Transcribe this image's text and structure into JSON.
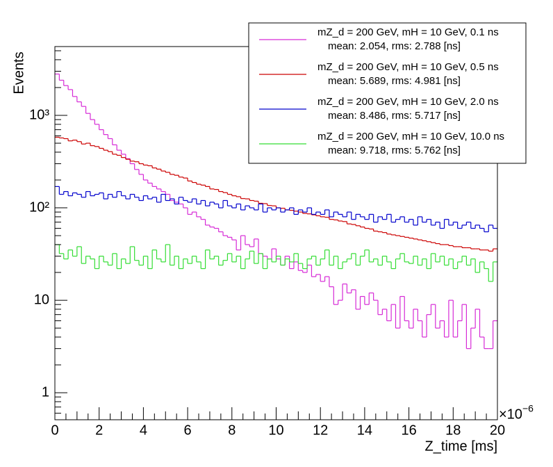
{
  "chart_data": {
    "type": "histogram",
    "x_label": "Z_time [ms]",
    "y_label": "Events",
    "x_multiplier": "×10",
    "x_multiplier_exponent": "−6",
    "log_y": true,
    "xlim": [
      0,
      20
    ],
    "ylim": [
      0.51,
      5550
    ],
    "xticks": [
      0,
      2,
      4,
      6,
      8,
      10,
      12,
      14,
      16,
      18,
      20
    ],
    "yticks": [
      1,
      10,
      {
        "value": 100,
        "label": "10²"
      },
      {
        "value": 1000,
        "label": "10³"
      }
    ],
    "bins": [
      0,
      0.2,
      0.4,
      0.6,
      0.8,
      1,
      1.2,
      1.4,
      1.6,
      1.8,
      2,
      2.2,
      2.4,
      2.6,
      2.8,
      3,
      3.2,
      3.4,
      3.6,
      3.8,
      4,
      4.2,
      4.4,
      4.6,
      4.8,
      5,
      5.2,
      5.4,
      5.6,
      5.8,
      6,
      6.2,
      6.4,
      6.6,
      6.8,
      7,
      7.2,
      7.4,
      7.6,
      7.8,
      8,
      8.2,
      8.4,
      8.6,
      8.8,
      9,
      9.2,
      9.4,
      9.6,
      9.8,
      10,
      10.2,
      10.4,
      10.6,
      10.8,
      11,
      11.2,
      11.4,
      11.6,
      11.8,
      12,
      12.2,
      12.4,
      12.6,
      12.8,
      13,
      13.2,
      13.4,
      13.6,
      13.8,
      14,
      14.2,
      14.4,
      14.6,
      14.8,
      15,
      15.2,
      15.4,
      15.6,
      15.8,
      16,
      16.2,
      16.4,
      16.6,
      16.8,
      17,
      17.2,
      17.4,
      17.6,
      17.8,
      18,
      18.2,
      18.4,
      18.6,
      18.8,
      19,
      19.2,
      19.4,
      19.6,
      19.8,
      20
    ],
    "series": [
      {
        "name": "mZ_d = 200 GeV, mH = 10 GeV, 0.1 ns",
        "stats": "mean: 2.054, rms: 2.788 [ns]",
        "color": "#d62ad6",
        "values": [
          2800,
          2400,
          2100,
          1900,
          1600,
          1400,
          1250,
          1050,
          900,
          800,
          700,
          620,
          560,
          480,
          420,
          380,
          340,
          300,
          260,
          230,
          200,
          185,
          170,
          160,
          150,
          140,
          120,
          115,
          110,
          100,
          85,
          90,
          80,
          75,
          65,
          62,
          60,
          55,
          50,
          48,
          45,
          35,
          50,
          40,
          38,
          46,
          32,
          30,
          28,
          36,
          28,
          24,
          30,
          22,
          26,
          21,
          20,
          24,
          18,
          19,
          16,
          18,
          14,
          9,
          10,
          15,
          12,
          13,
          8,
          11,
          9,
          12,
          10,
          7,
          8,
          6,
          9,
          5,
          11,
          6,
          5,
          8,
          6,
          4,
          7,
          9,
          5,
          6,
          4,
          10,
          4,
          6,
          9,
          3,
          5,
          8,
          4,
          3,
          3,
          6
        ]
      },
      {
        "name": "mZ_d = 200 GeV, mH = 10 GeV, 0.5 ns",
        "stats": "mean: 5.689, rms: 4.981 [ns]",
        "color": "#cc0000",
        "values": [
          580,
          570,
          560,
          530,
          540,
          520,
          490,
          500,
          470,
          460,
          440,
          420,
          405,
          380,
          370,
          350,
          335,
          320,
          315,
          300,
          290,
          285,
          270,
          262,
          250,
          242,
          230,
          225,
          215,
          210,
          195,
          188,
          180,
          176,
          170,
          160,
          158,
          150,
          146,
          140,
          135,
          132,
          126,
          125,
          120,
          118,
          112,
          111,
          106,
          105,
          100,
          99,
          95,
          94,
          92,
          90,
          87,
          86,
          84,
          82,
          80,
          79,
          75,
          74,
          72,
          71,
          67,
          66,
          64,
          62,
          60,
          59,
          56,
          55,
          54,
          52,
          51,
          50,
          49,
          48,
          47,
          46,
          45,
          44,
          43,
          42,
          41,
          40,
          40,
          39,
          38,
          38,
          37,
          37,
          36,
          36,
          35,
          35,
          34,
          36
        ]
      },
      {
        "name": "mZ_d = 200 GeV, mH = 10 GeV, 2.0 ns",
        "stats": "mean: 8.486, rms: 5.717 [ns]",
        "color": "#0000cc",
        "values": [
          170,
          140,
          150,
          135,
          145,
          140,
          130,
          150,
          135,
          140,
          145,
          125,
          140,
          130,
          150,
          135,
          125,
          140,
          130,
          120,
          135,
          125,
          130,
          115,
          140,
          120,
          125,
          110,
          130,
          120,
          115,
          125,
          110,
          120,
          105,
          115,
          110,
          100,
          120,
          105,
          100,
          110,
          95,
          105,
          100,
          95,
          110,
          90,
          100,
          95,
          100,
          90,
          95,
          100,
          85,
          95,
          90,
          100,
          85,
          90,
          85,
          95,
          80,
          90,
          85,
          80,
          90,
          75,
          85,
          80,
          75,
          85,
          70,
          80,
          75,
          85,
          70,
          75,
          80,
          70,
          75,
          65,
          80,
          70,
          75,
          65,
          70,
          60,
          75,
          65,
          70,
          60,
          65,
          70,
          60,
          65,
          60,
          55,
          65,
          60
        ]
      },
      {
        "name": "mZ_d = 200 GeV, mH = 10 GeV, 10.0 ns",
        "stats": "mean: 9.718, rms: 5.762 [ns]",
        "color": "#33dd33",
        "values": [
          40,
          32,
          28,
          35,
          30,
          38,
          25,
          30,
          28,
          22,
          30,
          26,
          24,
          32,
          22,
          28,
          25,
          38,
          27,
          24,
          30,
          22,
          35,
          28,
          26,
          40,
          24,
          30,
          22,
          28,
          25,
          30,
          26,
          22,
          35,
          28,
          30,
          24,
          27,
          32,
          26,
          30,
          22,
          28,
          34,
          25,
          32,
          22,
          28,
          26,
          30,
          24,
          28,
          26,
          32,
          25,
          22,
          28,
          30,
          24,
          28,
          35,
          24,
          30,
          22,
          26,
          28,
          32,
          24,
          30,
          35,
          26,
          28,
          24,
          30,
          26,
          22,
          28,
          32,
          26,
          25,
          30,
          24,
          28,
          22,
          32,
          26,
          30,
          24,
          28,
          22,
          26,
          30,
          24,
          28,
          20,
          26,
          22,
          16,
          26
        ]
      }
    ]
  }
}
